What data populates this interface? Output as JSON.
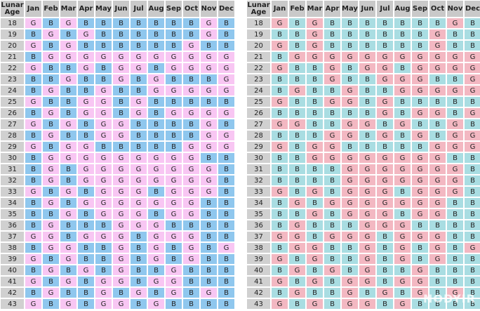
{
  "tables": [
    {
      "header": {
        "age_label": "Lunar Age",
        "months": [
          "Jan",
          "Feb",
          "Mar",
          "Apr",
          "May",
          "Jun",
          "Jul",
          "Aug",
          "Sep",
          "Oct",
          "Nov",
          "Dec"
        ]
      },
      "rows": [
        {
          "age": 18,
          "cells": [
            "G",
            "B",
            "G",
            "B",
            "B",
            "B",
            "B",
            "B",
            "B",
            "B",
            "G",
            "B"
          ]
        },
        {
          "age": 19,
          "cells": [
            "B",
            "G",
            "B",
            "G",
            "B",
            "B",
            "B",
            "B",
            "B",
            "B",
            "G",
            "B"
          ]
        },
        {
          "age": 20,
          "cells": [
            "G",
            "B",
            "G",
            "B",
            "B",
            "B",
            "B",
            "B",
            "B",
            "G",
            "B",
            "B"
          ]
        },
        {
          "age": 21,
          "cells": [
            "B",
            "G",
            "G",
            "G",
            "G",
            "G",
            "G",
            "G",
            "G",
            "G",
            "G",
            "G"
          ]
        },
        {
          "age": 22,
          "cells": [
            "G",
            "B",
            "B",
            "G",
            "B",
            "G",
            "G",
            "B",
            "G",
            "G",
            "G",
            "G"
          ]
        },
        {
          "age": 23,
          "cells": [
            "B",
            "B",
            "G",
            "B",
            "B",
            "G",
            "B",
            "G",
            "B",
            "B",
            "B",
            "G"
          ]
        },
        {
          "age": 24,
          "cells": [
            "B",
            "G",
            "B",
            "B",
            "G",
            "B",
            "B",
            "G",
            "G",
            "G",
            "G",
            "G"
          ]
        },
        {
          "age": 25,
          "cells": [
            "G",
            "B",
            "B",
            "G",
            "G",
            "B",
            "G",
            "B",
            "B",
            "B",
            "B",
            "B"
          ]
        },
        {
          "age": 26,
          "cells": [
            "B",
            "G",
            "B",
            "G",
            "G",
            "B",
            "G",
            "B",
            "G",
            "G",
            "G",
            "G"
          ]
        },
        {
          "age": 27,
          "cells": [
            "G",
            "B",
            "G",
            "B",
            "G",
            "G",
            "B",
            "B",
            "B",
            "B",
            "G",
            "B"
          ]
        },
        {
          "age": 28,
          "cells": [
            "B",
            "G",
            "B",
            "B",
            "G",
            "G",
            "B",
            "B",
            "B",
            "B",
            "G",
            "G"
          ]
        },
        {
          "age": 29,
          "cells": [
            "G",
            "B",
            "G",
            "G",
            "B",
            "B",
            "B",
            "B",
            "B",
            "G",
            "G",
            "G"
          ]
        },
        {
          "age": 30,
          "cells": [
            "B",
            "G",
            "G",
            "G",
            "G",
            "G",
            "G",
            "G",
            "G",
            "G",
            "B",
            "B"
          ]
        },
        {
          "age": 31,
          "cells": [
            "B",
            "G",
            "B",
            "G",
            "G",
            "G",
            "G",
            "G",
            "G",
            "G",
            "G",
            "B"
          ]
        },
        {
          "age": 32,
          "cells": [
            "B",
            "G",
            "B",
            "G",
            "G",
            "G",
            "G",
            "G",
            "G",
            "G",
            "G",
            "B"
          ]
        },
        {
          "age": 33,
          "cells": [
            "G",
            "B",
            "G",
            "B",
            "G",
            "G",
            "G",
            "B",
            "G",
            "G",
            "G",
            "B"
          ]
        },
        {
          "age": 34,
          "cells": [
            "B",
            "G",
            "B",
            "G",
            "G",
            "G",
            "G",
            "G",
            "G",
            "G",
            "B",
            "B"
          ]
        },
        {
          "age": 35,
          "cells": [
            "B",
            "B",
            "G",
            "B",
            "G",
            "G",
            "G",
            "B",
            "G",
            "G",
            "B",
            "B"
          ]
        },
        {
          "age": 36,
          "cells": [
            "B",
            "G",
            "B",
            "B",
            "B",
            "G",
            "G",
            "G",
            "B",
            "B",
            "B",
            "B"
          ]
        },
        {
          "age": 37,
          "cells": [
            "G",
            "G",
            "B",
            "G",
            "G",
            "G",
            "B",
            "G",
            "G",
            "G",
            "B",
            "B"
          ]
        },
        {
          "age": 38,
          "cells": [
            "B",
            "G",
            "G",
            "B",
            "B",
            "G",
            "B",
            "G",
            "B",
            "G",
            "B",
            "G"
          ]
        },
        {
          "age": 39,
          "cells": [
            "G",
            "B",
            "G",
            "B",
            "B",
            "G",
            "B",
            "G",
            "B",
            "G",
            "B",
            "B"
          ]
        },
        {
          "age": 40,
          "cells": [
            "B",
            "G",
            "B",
            "G",
            "B",
            "G",
            "B",
            "B",
            "G",
            "B",
            "B",
            "B"
          ]
        },
        {
          "age": 41,
          "cells": [
            "G",
            "B",
            "G",
            "B",
            "G",
            "G",
            "B",
            "G",
            "G",
            "B",
            "B",
            "B"
          ]
        },
        {
          "age": 42,
          "cells": [
            "B",
            "G",
            "B",
            "B",
            "G",
            "B",
            "G",
            "B",
            "G",
            "B",
            "G",
            "B"
          ]
        },
        {
          "age": 43,
          "cells": [
            "G",
            "B",
            "G",
            "B",
            "G",
            "G",
            "B",
            "G",
            "B",
            "B",
            "B",
            "B"
          ]
        }
      ]
    },
    {
      "header": {
        "age_label": "Lunar Age",
        "months": [
          "Jan",
          "Feb",
          "Mar",
          "Apr",
          "May",
          "Jun",
          "Jul",
          "Aug",
          "Sep",
          "Oct",
          "Nov",
          "Dec"
        ]
      },
      "rows": [
        {
          "age": 18,
          "cells": [
            "G",
            "B",
            "G",
            "B",
            "B",
            "B",
            "B",
            "B",
            "B",
            "B",
            "G",
            "B"
          ]
        },
        {
          "age": 19,
          "cells": [
            "B",
            "B",
            "G",
            "B",
            "B",
            "B",
            "B",
            "B",
            "B",
            "G",
            "B",
            "B"
          ]
        },
        {
          "age": 20,
          "cells": [
            "G",
            "B",
            "G",
            "B",
            "B",
            "B",
            "B",
            "B",
            "B",
            "G",
            "B",
            "B"
          ]
        },
        {
          "age": 21,
          "cells": [
            "B",
            "G",
            "G",
            "G",
            "G",
            "G",
            "G",
            "G",
            "G",
            "G",
            "G",
            "G"
          ]
        },
        {
          "age": 22,
          "cells": [
            "G",
            "B",
            "B",
            "G",
            "B",
            "G",
            "G",
            "B",
            "G",
            "G",
            "G",
            "G"
          ]
        },
        {
          "age": 23,
          "cells": [
            "B",
            "B",
            "B",
            "G",
            "B",
            "B",
            "G",
            "G",
            "G",
            "B",
            "B",
            "G"
          ]
        },
        {
          "age": 24,
          "cells": [
            "B",
            "G",
            "B",
            "B",
            "G",
            "B",
            "B",
            "G",
            "G",
            "G",
            "G",
            "G"
          ]
        },
        {
          "age": 25,
          "cells": [
            "G",
            "B",
            "B",
            "G",
            "G",
            "B",
            "G",
            "B",
            "B",
            "B",
            "B",
            "B"
          ]
        },
        {
          "age": 26,
          "cells": [
            "B",
            "B",
            "B",
            "B",
            "B",
            "B",
            "G",
            "B",
            "G",
            "G",
            "B",
            "G"
          ]
        },
        {
          "age": 27,
          "cells": [
            "G",
            "G",
            "B",
            "B",
            "G",
            "G",
            "B",
            "G",
            "B",
            "B",
            "G",
            "B"
          ]
        },
        {
          "age": 28,
          "cells": [
            "B",
            "B",
            "B",
            "G",
            "G",
            "B",
            "G",
            "B",
            "G",
            "B",
            "G",
            "G"
          ]
        },
        {
          "age": 29,
          "cells": [
            "G",
            "B",
            "G",
            "G",
            "B",
            "B",
            "B",
            "B",
            "B",
            "G",
            "G",
            "G"
          ]
        },
        {
          "age": 30,
          "cells": [
            "B",
            "B",
            "G",
            "G",
            "G",
            "G",
            "G",
            "G",
            "G",
            "G",
            "B",
            "B"
          ]
        },
        {
          "age": 31,
          "cells": [
            "B",
            "B",
            "B",
            "B",
            "G",
            "G",
            "G",
            "G",
            "G",
            "G",
            "G",
            "B"
          ]
        },
        {
          "age": 32,
          "cells": [
            "B",
            "B",
            "B",
            "B",
            "G",
            "G",
            "G",
            "G",
            "G",
            "G",
            "G",
            "B"
          ]
        },
        {
          "age": 33,
          "cells": [
            "G",
            "B",
            "G",
            "B",
            "G",
            "G",
            "G",
            "B",
            "G",
            "G",
            "G",
            "B"
          ]
        },
        {
          "age": 34,
          "cells": [
            "B",
            "G",
            "B",
            "G",
            "G",
            "G",
            "G",
            "G",
            "G",
            "G",
            "B",
            "B"
          ]
        },
        {
          "age": 35,
          "cells": [
            "B",
            "B",
            "G",
            "B",
            "G",
            "G",
            "G",
            "B",
            "G",
            "G",
            "B",
            "B"
          ]
        },
        {
          "age": 36,
          "cells": [
            "B",
            "G",
            "B",
            "B",
            "B",
            "G",
            "G",
            "G",
            "B",
            "B",
            "B",
            "B"
          ]
        },
        {
          "age": 37,
          "cells": [
            "G",
            "G",
            "B",
            "G",
            "G",
            "G",
            "B",
            "G",
            "G",
            "G",
            "B",
            "B"
          ]
        },
        {
          "age": 38,
          "cells": [
            "B",
            "G",
            "G",
            "B",
            "B",
            "G",
            "B",
            "G",
            "B",
            "G",
            "B",
            "G"
          ]
        },
        {
          "age": 39,
          "cells": [
            "G",
            "B",
            "G",
            "B",
            "B",
            "G",
            "B",
            "G",
            "B",
            "G",
            "B",
            "B"
          ]
        },
        {
          "age": 40,
          "cells": [
            "B",
            "G",
            "B",
            "G",
            "B",
            "G",
            "B",
            "B",
            "G",
            "B",
            "B",
            "B"
          ]
        },
        {
          "age": 41,
          "cells": [
            "G",
            "B",
            "G",
            "B",
            "G",
            "G",
            "B",
            "G",
            "G",
            "B",
            "B",
            "B"
          ]
        },
        {
          "age": 42,
          "cells": [
            "B",
            "G",
            "B",
            "B",
            "G",
            "B",
            "G",
            "B",
            "G",
            "B",
            "G",
            "B"
          ]
        },
        {
          "age": 43,
          "cells": [
            "G",
            "B",
            "G",
            "B",
            "G",
            "G",
            "B",
            "G",
            "B",
            "B",
            "B",
            "B"
          ]
        }
      ]
    }
  ],
  "watermark": "NODYIR"
}
